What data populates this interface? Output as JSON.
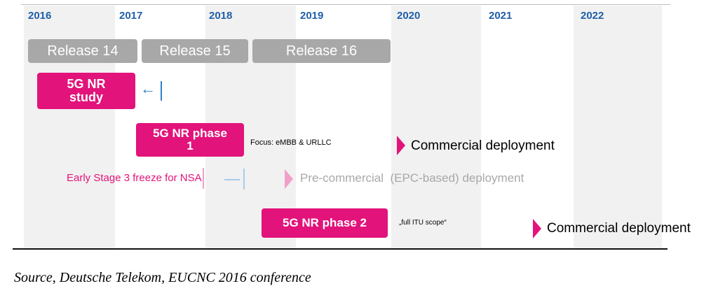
{
  "years": [
    "2016",
    "2017",
    "2018",
    "2019",
    "2020",
    "2021",
    "2022"
  ],
  "releases": [
    "Release 14",
    "Release 15",
    "Release 16"
  ],
  "study": {
    "line1": "5G NR",
    "line2": "study"
  },
  "phase1": {
    "line1": "5G NR phase",
    "line2": "1",
    "focus": "Focus: eMBB & URLLC",
    "deployment": "Commercial deployment"
  },
  "nsa": {
    "freeze": "Early Stage 3 freeze for NSA",
    "precommercial": "Pre-commercial  (EPC-based) deployment"
  },
  "phase2": {
    "label": "5G NR phase 2",
    "scope": "„full ITU scope“",
    "deployment": "Commercial deployment"
  },
  "source": "Source, Deutsche Telekom, EUCNC 2016 conference",
  "colors": {
    "pink": "#e2137a",
    "gray": "#a8a8a8",
    "year_blue": "#1f5fa8",
    "arrow_blue": "#2f7fc8",
    "light_pink": "#f0a0c8",
    "light_blue": "#a8cbe8"
  }
}
